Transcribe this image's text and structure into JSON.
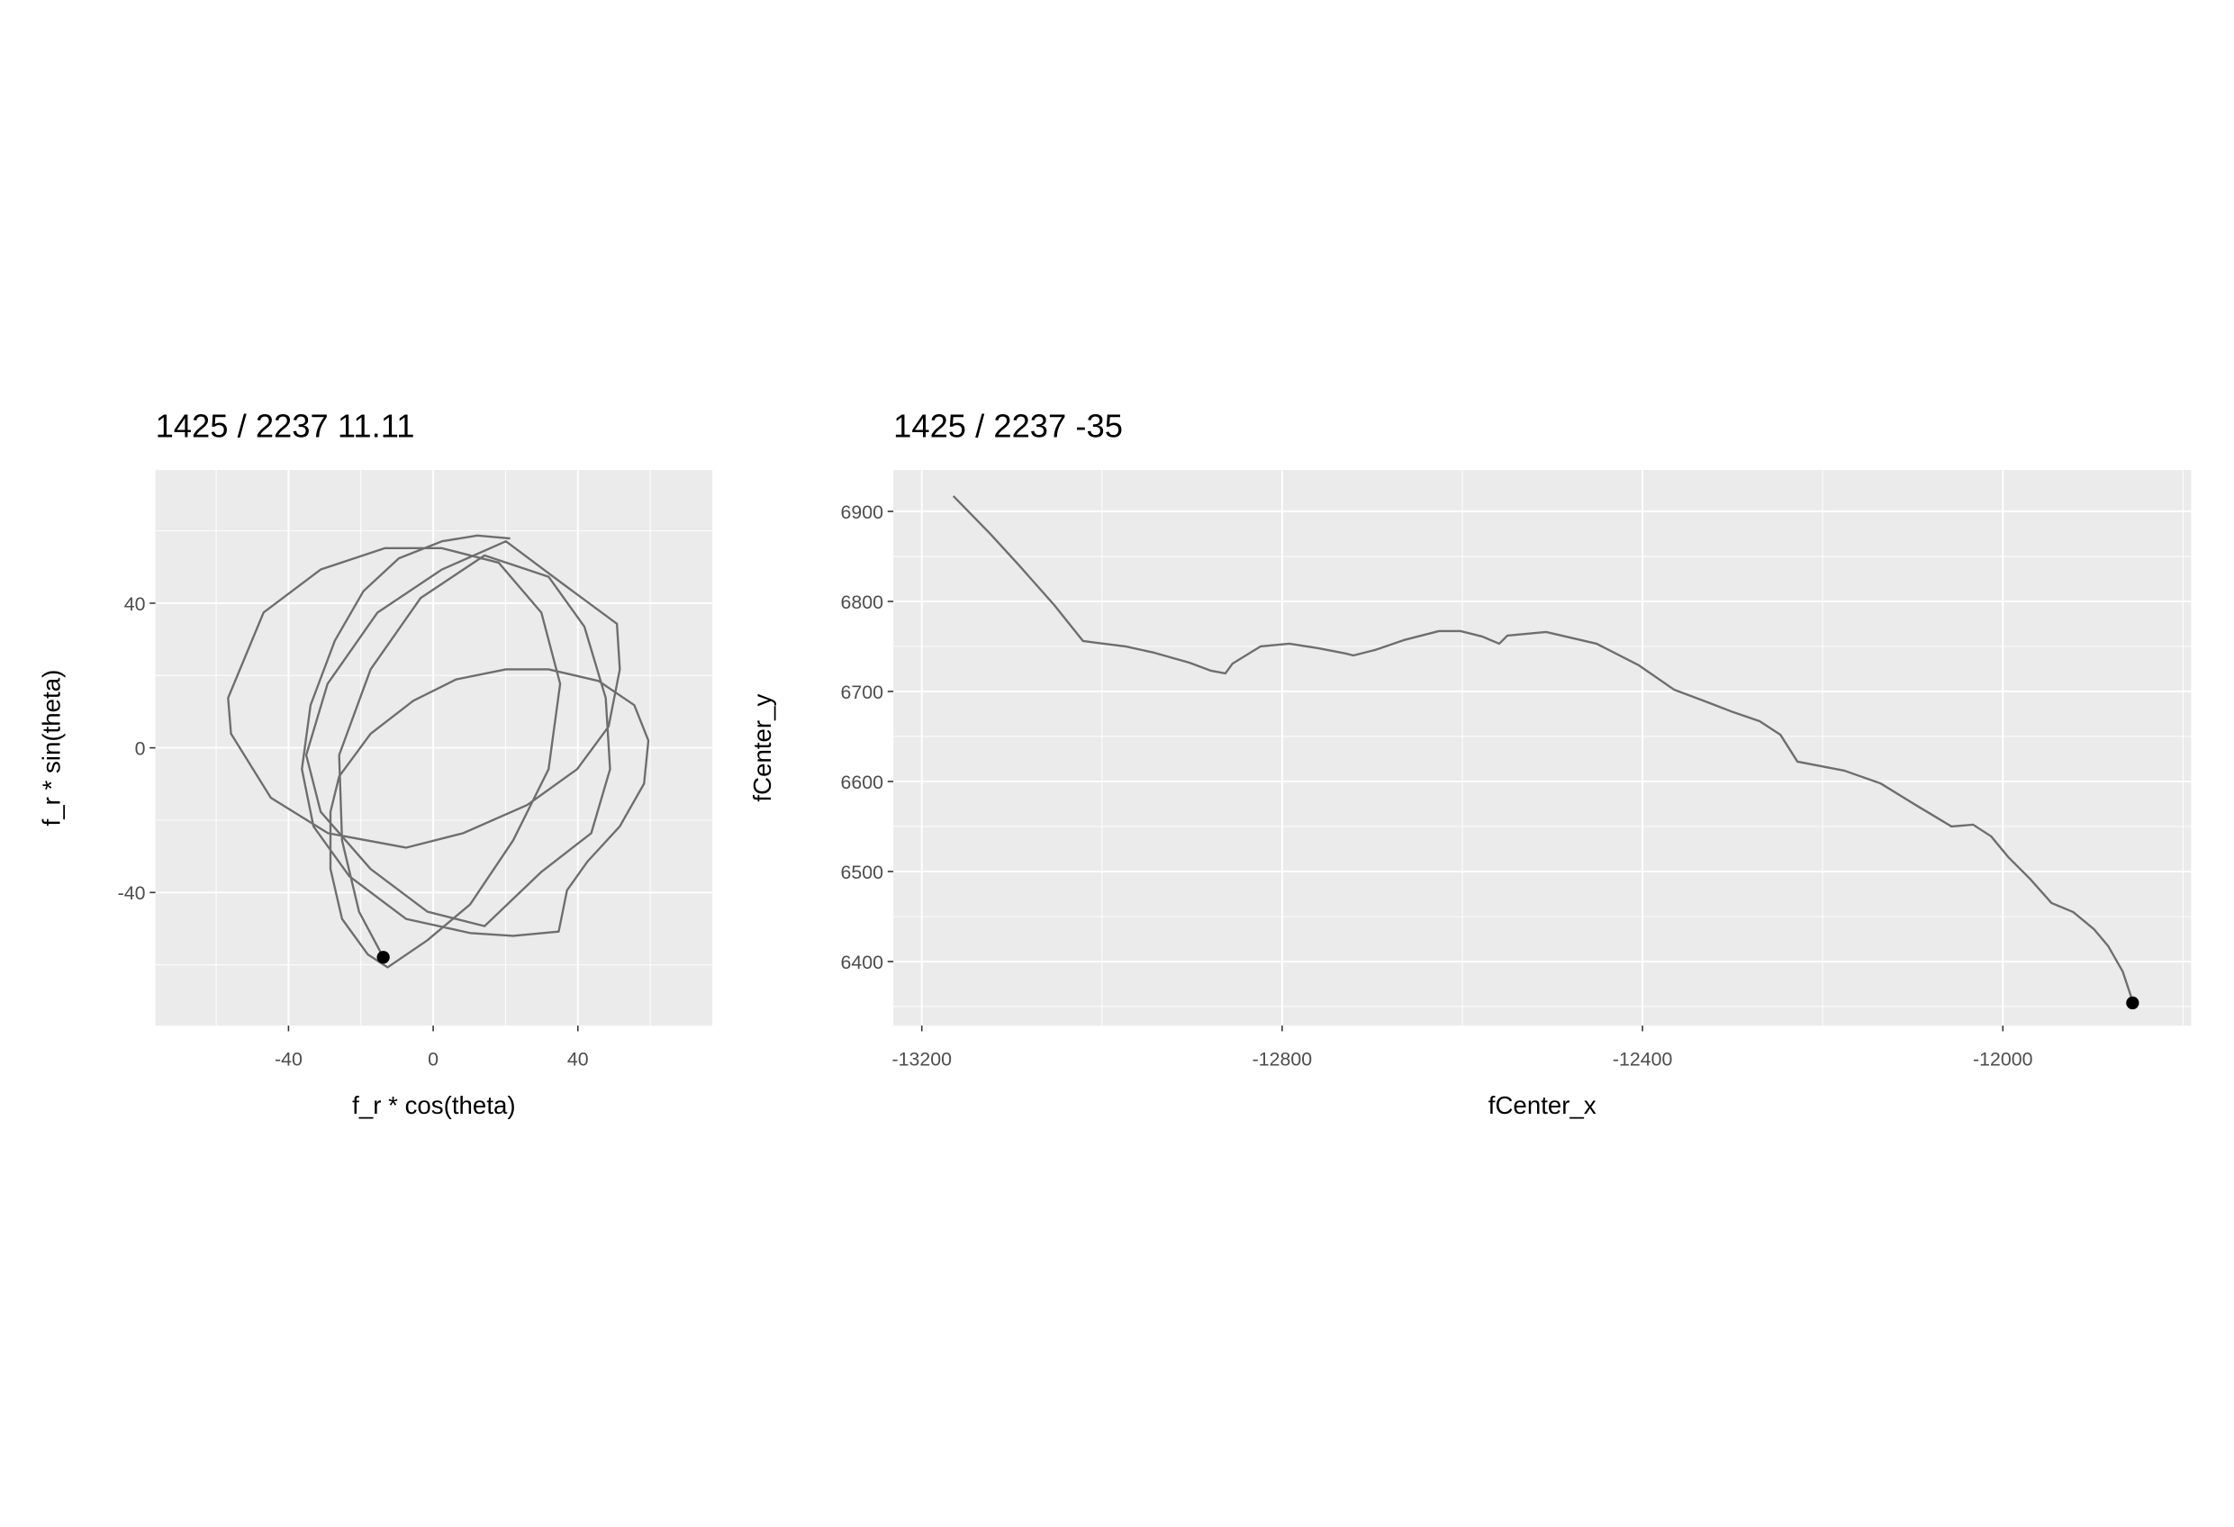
{
  "chart_data": [
    {
      "type": "line",
      "title": "1425 / 2237 11.11",
      "x_label": "f_r * cos(theta)",
      "y_label": "f_r * sin(theta)",
      "x": [
        21.3,
        12.2,
        2.4,
        -9.5,
        -19.3,
        -27.2,
        -33.9,
        -36.3,
        -33.1,
        -23.2,
        -7.5,
        10.2,
        22.1,
        34.7,
        37.0,
        42.6,
        51.6,
        58.3,
        59.5,
        55.6,
        45.7,
        31.9,
        20.1,
        6.3,
        -5.5,
        -17.3,
        -26.0,
        -28.4,
        -28.4,
        -25.2,
        -18.1,
        -12.6,
        -1.6,
        10.2,
        22.1,
        31.9,
        35.1,
        29.9,
        18.1,
        2.4,
        -13.4,
        -31.1,
        -46.9,
        -56.7,
        -55.9,
        -44.9,
        -29.1,
        -7.5,
        8.3,
        26.0,
        39.8,
        48.5,
        51.6,
        50.8,
        35.9,
        20.1,
        2.4,
        -15.4,
        -29.2,
        -35.1,
        -31.1,
        -17.3,
        -1.6,
        14.2,
        29.9,
        43.7,
        48.9,
        47.7,
        41.8,
        31.9,
        14.2,
        -3.5,
        -17.3,
        -26.0,
        -25.2,
        -20.5,
        -13.8
      ],
      "series": [
        {
          "color": "#6e6e6e",
          "values": [
            57.9,
            58.7,
            57.1,
            52.4,
            43.3,
            29.6,
            11.8,
            -5.9,
            -21.7,
            -35.5,
            -47.3,
            -51.2,
            -52.0,
            -50.8,
            -39.4,
            -31.5,
            -21.7,
            -9.9,
            2.0,
            11.8,
            18.5,
            21.7,
            21.7,
            18.9,
            13.0,
            3.9,
            -7.9,
            -17.7,
            -33.5,
            -47.3,
            -57.1,
            -60.7,
            -53.2,
            -43.3,
            -25.6,
            -5.9,
            17.7,
            37.4,
            51.2,
            55.2,
            55.2,
            49.3,
            37.4,
            13.8,
            3.9,
            -13.8,
            -23.6,
            -27.6,
            -23.6,
            -15.8,
            -5.9,
            5.9,
            21.7,
            34.3,
            45.3,
            57.1,
            49.3,
            37.4,
            17.7,
            -2.0,
            -17.7,
            -33.5,
            -45.3,
            -49.3,
            -34.3,
            -23.6,
            -5.9,
            13.8,
            33.5,
            47.3,
            53.2,
            41.4,
            21.7,
            -2.0,
            -25.6,
            -45.3,
            -57.9
          ]
        }
      ],
      "point": {
        "x": -13.8,
        "y": -57.9,
        "color": "#000000"
      },
      "xlim": [
        -76.8,
        77.2
      ],
      "ylim": [
        -76.8,
        76.8
      ],
      "xticks": [
        -40,
        0,
        40
      ],
      "yticks": [
        -40,
        0,
        40
      ],
      "xminor": [
        -60,
        -20,
        20,
        60
      ],
      "yminor": [
        -60,
        -20,
        20,
        60
      ],
      "grid": true,
      "background": "#ebebeb"
    },
    {
      "type": "line",
      "title": "1425 / 2237 -35",
      "x_label": "fCenter_x",
      "y_label": "fCenter_y",
      "x": [
        -13165,
        -13124,
        -13092,
        -13053,
        -13021,
        -13006,
        -12974,
        -12942,
        -12903,
        -12879,
        -12863,
        -12855,
        -12824,
        -12792,
        -12760,
        -12729,
        -12721,
        -12697,
        -12665,
        -12626,
        -12602,
        -12578,
        -12559,
        -12550,
        -12507,
        -12451,
        -12404,
        -12365,
        -12333,
        -12302,
        -12270,
        -12247,
        -12228,
        -12176,
        -12136,
        -12097,
        -12057,
        -12033,
        -12013,
        -11994,
        -11970,
        -11946,
        -11922,
        -11899,
        -11883,
        -11867,
        -11856
      ],
      "series": [
        {
          "color": "#6e6e6e",
          "values": [
            6917,
            6875,
            6840,
            6796,
            6756,
            6754,
            6750,
            6743,
            6732,
            6723,
            6720,
            6731,
            6750,
            6753,
            6748,
            6742,
            6740,
            6746,
            6757,
            6767,
            6767,
            6761,
            6753,
            6762,
            6766,
            6753,
            6729,
            6702,
            6690,
            6678,
            6667,
            6652,
            6622,
            6612,
            6598,
            6574,
            6550,
            6552,
            6539,
            6516,
            6492,
            6465,
            6455,
            6436,
            6417,
            6389,
            6356
          ]
        }
      ],
      "point": {
        "x": -11856,
        "y": 6354,
        "color": "#000000"
      },
      "xlim": [
        -13231.6,
        -11791
      ],
      "ylim": [
        6328.8,
        6945.9
      ],
      "xticks": [
        -13200,
        -12800,
        -12400,
        -12000
      ],
      "yticks": [
        6400,
        6500,
        6600,
        6700,
        6800,
        6900
      ],
      "xminor": [
        -13000,
        -12600,
        -12200,
        -11800
      ],
      "yminor": [
        6350,
        6450,
        6550,
        6650,
        6750,
        6850
      ],
      "grid": true,
      "background": "#ebebeb"
    }
  ]
}
